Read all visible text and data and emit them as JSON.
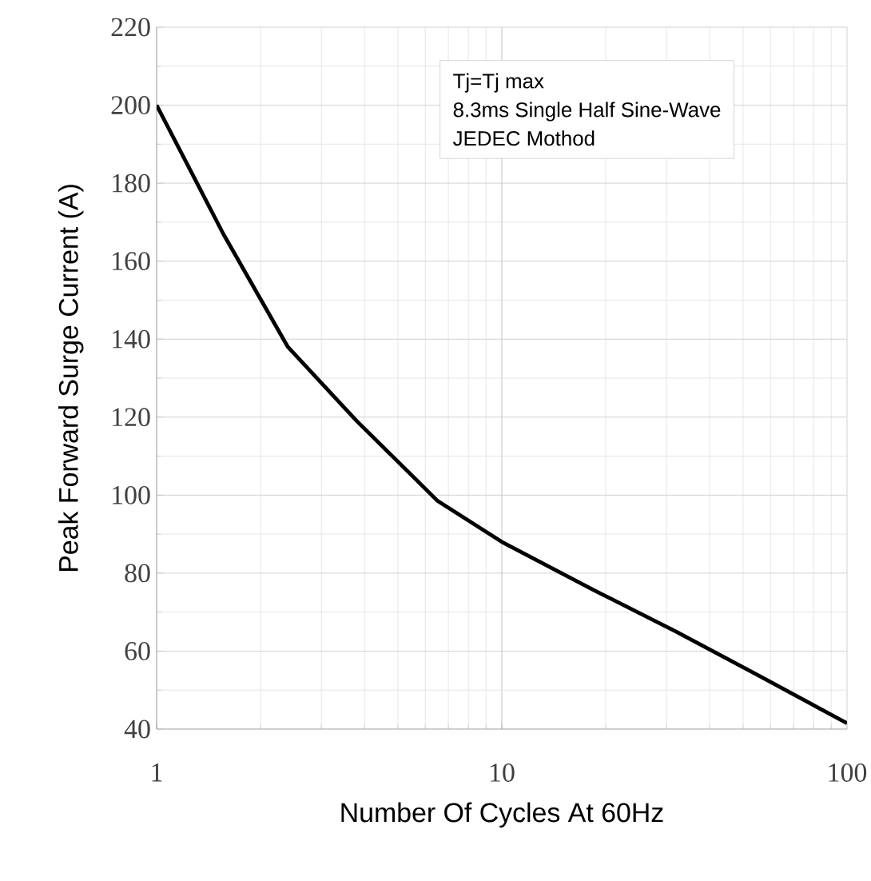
{
  "chart_data": {
    "type": "line",
    "xlabel": "Number Of Cycles At 60Hz",
    "ylabel": "Peak Forward Surge Current (A)",
    "x": [
      1,
      1.56,
      2.4,
      3.8,
      6.5,
      10,
      18.8,
      32,
      54.7,
      100
    ],
    "series": [
      {
        "color": "#000000",
        "values": [
          200,
          167,
          138,
          119,
          98.6,
          88,
          75.3,
          65,
          54,
          41.5
        ]
      }
    ],
    "xlim": [
      1,
      100
    ],
    "ylim": [
      40,
      220
    ],
    "xticks": [
      1,
      10,
      100
    ],
    "yticks": [
      40,
      60,
      80,
      100,
      120,
      140,
      160,
      180,
      200,
      220
    ],
    "log": "x",
    "grid": true,
    "marker": "none",
    "line_style": "solid",
    "annotations": [
      "Tj=Tj max",
      "8.3ms Single Half Sine-Wave",
      "JEDEC Mothod"
    ]
  }
}
